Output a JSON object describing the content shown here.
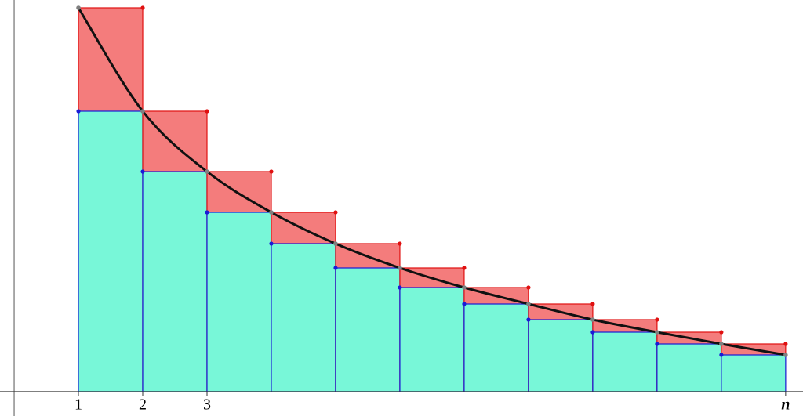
{
  "chart_data": {
    "type": "riemann",
    "x": [
      1,
      2,
      3,
      4,
      5,
      6,
      7,
      8,
      9,
      10,
      11,
      12
    ],
    "values": [
      490,
      358,
      281,
      229,
      189,
      158,
      133,
      112,
      92,
      76,
      61,
      47
    ],
    "xlim": [
      -0.22,
      12.27
    ],
    "ylim": [
      -31,
      500
    ],
    "xticks": [
      1,
      2,
      3,
      {
        "value": 12,
        "label": "n"
      }
    ],
    "upper_color": "#f47c7c",
    "upper_edge": "#e01010",
    "lower_color": "#78f7d8",
    "lower_edge": "#1a1ad6",
    "curve_color": "#111111",
    "point_color": "#808080"
  }
}
